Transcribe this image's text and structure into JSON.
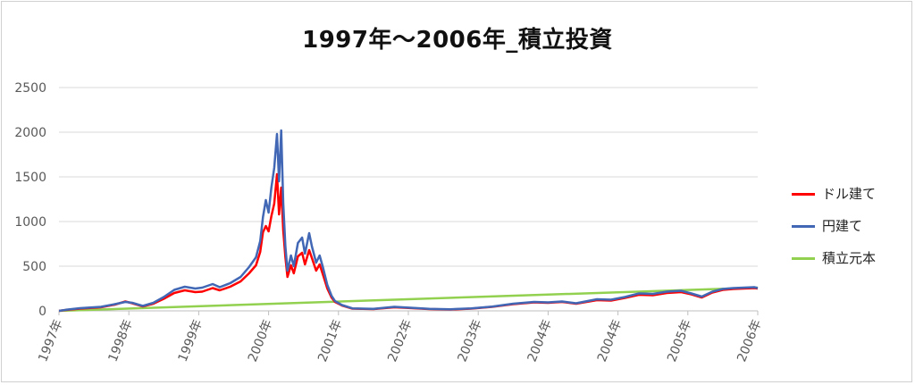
{
  "chart_data": {
    "type": "line",
    "title": "1997年～2006年_積立投資",
    "xlabel": "",
    "ylabel": "",
    "ylim": [
      0,
      2500
    ],
    "y_ticks": [
      "0",
      "500",
      "1000",
      "1500",
      "2000",
      "2500"
    ],
    "x_tick_labels": [
      "1997年",
      "1998年",
      "1999年",
      "2000年",
      "2001年",
      "2002年",
      "2003年",
      "2004年",
      "2004年",
      "2005年",
      "2006年"
    ],
    "grid": true,
    "legend_position": "right",
    "series": [
      {
        "name": "ドル建て",
        "color": "#ff0000",
        "points": [
          [
            0,
            0
          ],
          [
            0.1,
            10
          ],
          [
            0.3,
            25
          ],
          [
            0.6,
            40
          ],
          [
            0.8,
            70
          ],
          [
            0.95,
            105
          ],
          [
            1.05,
            85
          ],
          [
            1.2,
            50
          ],
          [
            1.35,
            80
          ],
          [
            1.5,
            135
          ],
          [
            1.65,
            200
          ],
          [
            1.8,
            230
          ],
          [
            1.95,
            210
          ],
          [
            2.05,
            215
          ],
          [
            2.2,
            255
          ],
          [
            2.3,
            230
          ],
          [
            2.45,
            270
          ],
          [
            2.6,
            330
          ],
          [
            2.72,
            420
          ],
          [
            2.82,
            510
          ],
          [
            2.88,
            660
          ],
          [
            2.92,
            880
          ],
          [
            2.96,
            950
          ],
          [
            3.0,
            890
          ],
          [
            3.04,
            1060
          ],
          [
            3.08,
            1200
          ],
          [
            3.12,
            1530
          ],
          [
            3.15,
            1080
          ],
          [
            3.18,
            1380
          ],
          [
            3.21,
            900
          ],
          [
            3.24,
            600
          ],
          [
            3.27,
            380
          ],
          [
            3.32,
            510
          ],
          [
            3.36,
            420
          ],
          [
            3.42,
            610
          ],
          [
            3.48,
            650
          ],
          [
            3.52,
            520
          ],
          [
            3.58,
            680
          ],
          [
            3.62,
            590
          ],
          [
            3.68,
            450
          ],
          [
            3.73,
            520
          ],
          [
            3.78,
            400
          ],
          [
            3.84,
            250
          ],
          [
            3.9,
            150
          ],
          [
            3.95,
            100
          ],
          [
            4.05,
            60
          ],
          [
            4.2,
            25
          ],
          [
            4.5,
            20
          ],
          [
            4.8,
            40
          ],
          [
            5.0,
            32
          ],
          [
            5.3,
            20
          ],
          [
            5.6,
            15
          ],
          [
            5.9,
            25
          ],
          [
            6.2,
            45
          ],
          [
            6.5,
            75
          ],
          [
            6.8,
            95
          ],
          [
            7.0,
            90
          ],
          [
            7.2,
            100
          ],
          [
            7.4,
            80
          ],
          [
            7.7,
            120
          ],
          [
            7.9,
            115
          ],
          [
            8.1,
            145
          ],
          [
            8.3,
            180
          ],
          [
            8.5,
            175
          ],
          [
            8.7,
            200
          ],
          [
            8.9,
            210
          ],
          [
            9.05,
            185
          ],
          [
            9.2,
            150
          ],
          [
            9.35,
            205
          ],
          [
            9.5,
            235
          ],
          [
            9.65,
            245
          ],
          [
            9.8,
            250
          ],
          [
            9.95,
            255
          ],
          [
            10.0,
            250
          ]
        ]
      },
      {
        "name": "円建て",
        "color": "#4167b5",
        "points": [
          [
            0,
            0
          ],
          [
            0.1,
            12
          ],
          [
            0.3,
            30
          ],
          [
            0.6,
            45
          ],
          [
            0.8,
            75
          ],
          [
            0.95,
            100
          ],
          [
            1.05,
            90
          ],
          [
            1.2,
            55
          ],
          [
            1.35,
            90
          ],
          [
            1.5,
            155
          ],
          [
            1.65,
            235
          ],
          [
            1.8,
            270
          ],
          [
            1.95,
            250
          ],
          [
            2.05,
            260
          ],
          [
            2.2,
            300
          ],
          [
            2.3,
            265
          ],
          [
            2.45,
            310
          ],
          [
            2.6,
            380
          ],
          [
            2.72,
            490
          ],
          [
            2.82,
            600
          ],
          [
            2.88,
            780
          ],
          [
            2.92,
            1050
          ],
          [
            2.96,
            1240
          ],
          [
            3.0,
            1100
          ],
          [
            3.04,
            1380
          ],
          [
            3.08,
            1600
          ],
          [
            3.12,
            1980
          ],
          [
            3.15,
            1450
          ],
          [
            3.18,
            2020
          ],
          [
            3.21,
            1200
          ],
          [
            3.24,
            720
          ],
          [
            3.27,
            450
          ],
          [
            3.32,
            620
          ],
          [
            3.36,
            500
          ],
          [
            3.42,
            760
          ],
          [
            3.48,
            820
          ],
          [
            3.52,
            640
          ],
          [
            3.58,
            870
          ],
          [
            3.62,
            720
          ],
          [
            3.68,
            540
          ],
          [
            3.73,
            620
          ],
          [
            3.78,
            480
          ],
          [
            3.84,
            290
          ],
          [
            3.9,
            170
          ],
          [
            3.95,
            110
          ],
          [
            4.05,
            65
          ],
          [
            4.2,
            28
          ],
          [
            4.5,
            22
          ],
          [
            4.8,
            45
          ],
          [
            5.0,
            36
          ],
          [
            5.3,
            22
          ],
          [
            5.6,
            18
          ],
          [
            5.9,
            28
          ],
          [
            6.2,
            48
          ],
          [
            6.5,
            80
          ],
          [
            6.8,
            100
          ],
          [
            7.0,
            95
          ],
          [
            7.2,
            105
          ],
          [
            7.4,
            85
          ],
          [
            7.7,
            130
          ],
          [
            7.9,
            125
          ],
          [
            8.1,
            155
          ],
          [
            8.3,
            195
          ],
          [
            8.5,
            190
          ],
          [
            8.7,
            215
          ],
          [
            8.9,
            225
          ],
          [
            9.05,
            195
          ],
          [
            9.2,
            160
          ],
          [
            9.35,
            215
          ],
          [
            9.5,
            245
          ],
          [
            9.65,
            255
          ],
          [
            9.8,
            260
          ],
          [
            9.95,
            265
          ],
          [
            10.0,
            255
          ]
        ]
      },
      {
        "name": "積立元本",
        "color": "#92d050",
        "points": [
          [
            0,
            0
          ],
          [
            10,
            260
          ]
        ]
      }
    ]
  }
}
